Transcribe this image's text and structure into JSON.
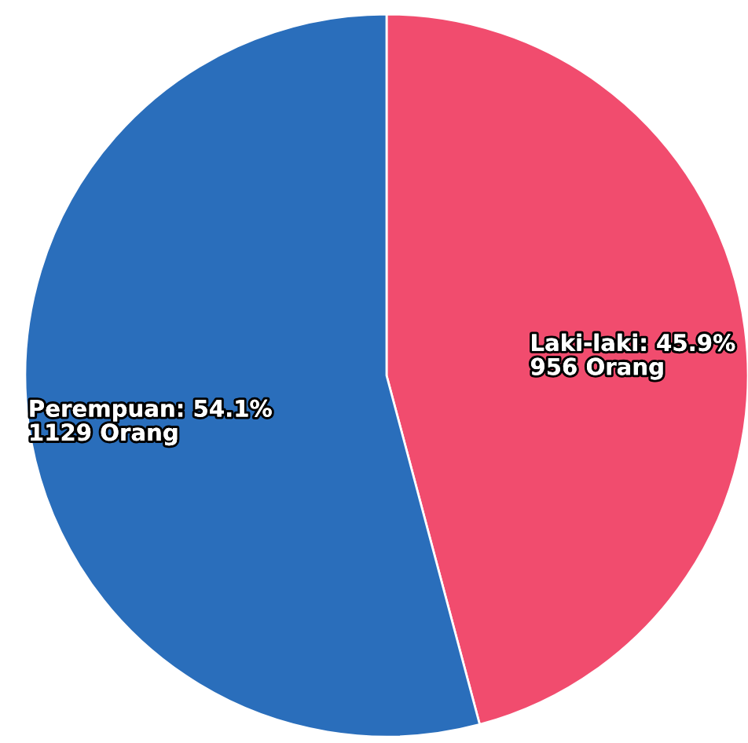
{
  "chart_data": {
    "type": "pie",
    "categories": [
      "Laki-laki",
      "Perempuan"
    ],
    "values": [
      956,
      1129
    ],
    "colors": [
      "#f14c6e",
      "#2a6ebb"
    ],
    "value_labels": [
      "45.9%\n956 Orang",
      "54.1%\n1129 Orang"
    ],
    "legend": false
  }
}
